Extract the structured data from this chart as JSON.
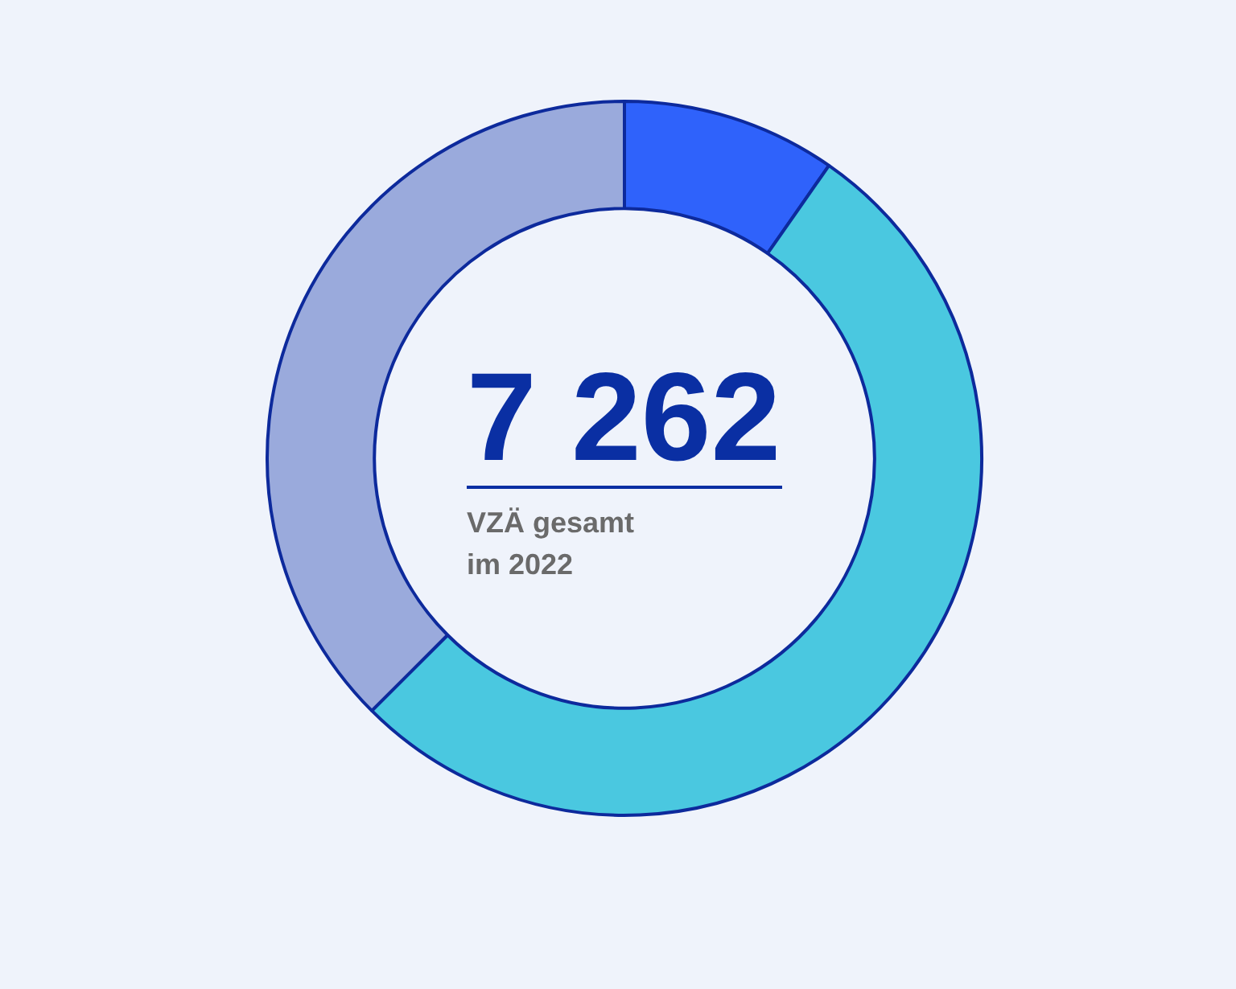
{
  "chart_data": {
    "type": "donut",
    "categories": [
      null,
      null,
      null
    ],
    "values": [
      9.7,
      52.8,
      37.5
    ],
    "colors": [
      "#2f62fb",
      "#4ac8e0",
      "#9aaadc"
    ],
    "annotations": [
      "7 262",
      "VZÄ gesamt im 2022"
    ]
  }
}
